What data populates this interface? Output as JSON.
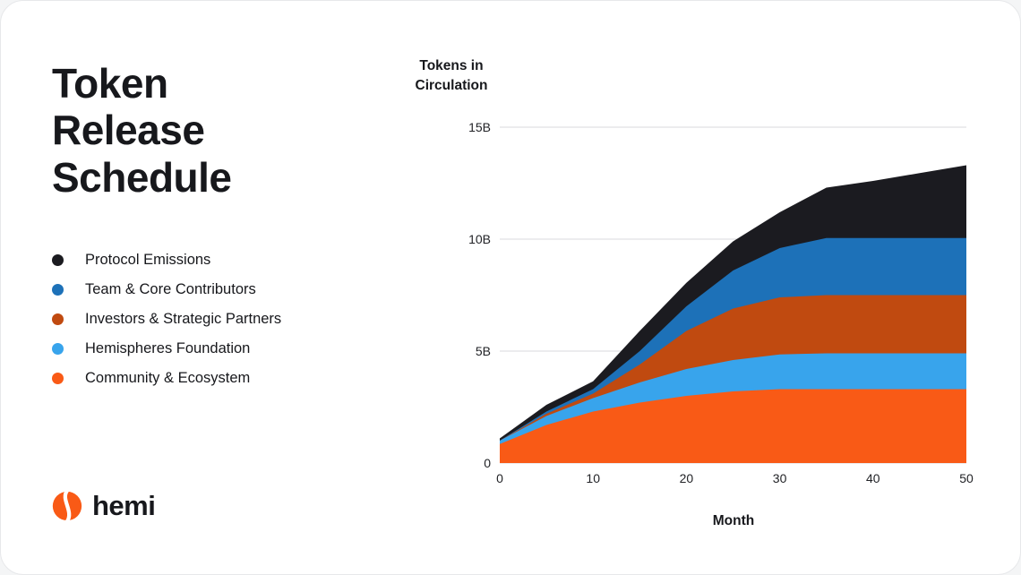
{
  "card": {
    "title": "Token Release Schedule"
  },
  "legend": {
    "items": [
      {
        "label": "Protocol Emissions",
        "color": "#1b1b20"
      },
      {
        "label": "Team & Core Contributors",
        "color": "#1d71b8"
      },
      {
        "label": "Investors & Strategic Partners",
        "color": "#c04a10"
      },
      {
        "label": "Hemispheres Foundation",
        "color": "#38a4ec"
      },
      {
        "label": "Community & Ecosystem",
        "color": "#f95a16"
      }
    ]
  },
  "logo": {
    "text": "hemi",
    "color": "#f95a16"
  },
  "chart_data": {
    "type": "area",
    "stacked": true,
    "title": "",
    "ylabel": "Tokens in Circulation",
    "xlabel": "Month",
    "x": [
      0,
      5,
      10,
      15,
      20,
      25,
      30,
      35,
      40,
      45,
      50
    ],
    "series": [
      {
        "name": "Community & Ecosystem",
        "color": "#f95a16",
        "values": [
          0.85,
          1.7,
          2.3,
          2.7,
          3.0,
          3.2,
          3.3,
          3.3,
          3.3,
          3.3,
          3.3
        ]
      },
      {
        "name": "Hemispheres Foundation",
        "color": "#38a4ec",
        "values": [
          0.15,
          0.4,
          0.6,
          0.9,
          1.2,
          1.4,
          1.55,
          1.6,
          1.6,
          1.6,
          1.6
        ]
      },
      {
        "name": "Investors & Strategic Partners",
        "color": "#c04a10",
        "values": [
          0.0,
          0.1,
          0.2,
          0.8,
          1.7,
          2.3,
          2.55,
          2.6,
          2.6,
          2.6,
          2.6
        ]
      },
      {
        "name": "Team & Core Contributors",
        "color": "#1d71b8",
        "values": [
          0.0,
          0.1,
          0.2,
          0.6,
          1.1,
          1.7,
          2.2,
          2.55,
          2.55,
          2.55,
          2.55
        ]
      },
      {
        "name": "Protocol Emissions",
        "color": "#1b1b20",
        "values": [
          0.1,
          0.3,
          0.35,
          0.9,
          1.05,
          1.3,
          1.6,
          2.25,
          2.55,
          2.9,
          3.25
        ]
      }
    ],
    "xlim": [
      0,
      50
    ],
    "ylim": [
      0,
      15
    ],
    "yticks": [
      {
        "value": 0,
        "label": "0"
      },
      {
        "value": 5,
        "label": "5B"
      },
      {
        "value": 10,
        "label": "10B"
      },
      {
        "value": 15,
        "label": "15B"
      }
    ],
    "xticks": [
      {
        "value": 0,
        "label": "0"
      },
      {
        "value": 10,
        "label": "10"
      },
      {
        "value": 20,
        "label": "20"
      },
      {
        "value": 30,
        "label": "30"
      },
      {
        "value": 40,
        "label": "40"
      },
      {
        "value": 50,
        "label": "50"
      }
    ],
    "grid": "horizontal",
    "legend_position": "left"
  }
}
